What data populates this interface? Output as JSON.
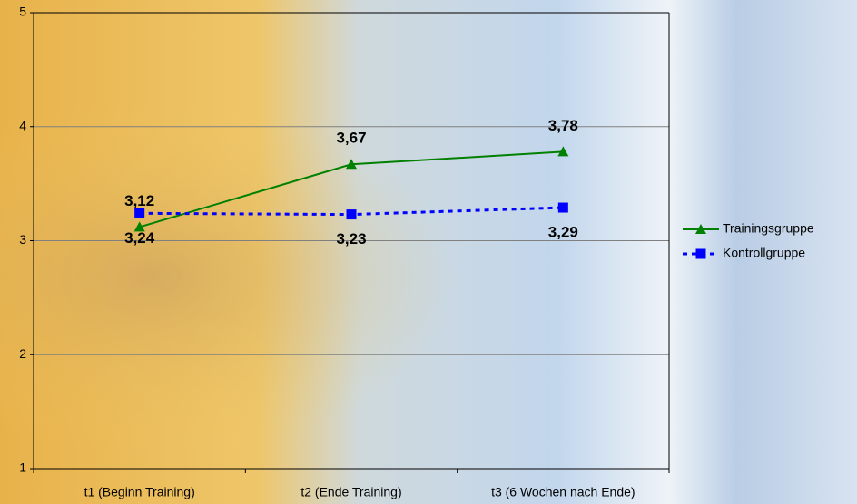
{
  "chart_data": {
    "type": "line",
    "categories": [
      "t1 (Beginn Training)",
      "t2 (Ende Training)",
      "t3 (6 Wochen nach Ende)"
    ],
    "series": [
      {
        "name": "Trainingsgruppe",
        "color": "#008000",
        "marker": "triangle",
        "line_style": "solid",
        "label_position": "above",
        "values": [
          3.12,
          3.67,
          3.78
        ],
        "value_labels": [
          "3,12",
          "3,67",
          "3,78"
        ]
      },
      {
        "name": "Kontrollgruppe",
        "color": "#0000ff",
        "marker": "square",
        "line_style": "dashed",
        "label_position": "below",
        "values": [
          3.24,
          3.23,
          3.29
        ],
        "value_labels": [
          "3,24",
          "3,23",
          "3,29"
        ]
      }
    ],
    "ylim": [
      1,
      5
    ],
    "yticks": [
      1,
      2,
      3,
      4,
      5
    ],
    "grid": true,
    "legend": "right"
  }
}
